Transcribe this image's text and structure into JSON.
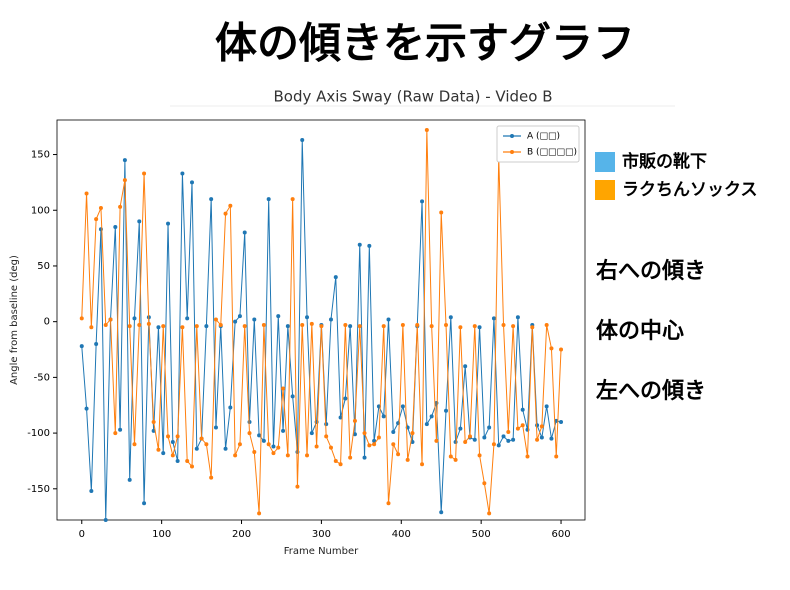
{
  "title": "体の傾きを示すグラフ",
  "chart_data": {
    "type": "line",
    "title": "Body Axis Sway (Raw Data) - Video B",
    "x_label": "Frame Number",
    "y_label": "Angle from baseline (deg)",
    "x": [
      0,
      6,
      12,
      18,
      24,
      30,
      36,
      42,
      48,
      54,
      60,
      66,
      72,
      78,
      84,
      90,
      96,
      102,
      108,
      114,
      120,
      126,
      132,
      138,
      144,
      150,
      156,
      162,
      168,
      174,
      180,
      186,
      192,
      198,
      204,
      210,
      216,
      222,
      228,
      234,
      240,
      246,
      252,
      258,
      264,
      270,
      276,
      282,
      288,
      294,
      300,
      306,
      312,
      318,
      324,
      330,
      336,
      342,
      348,
      354,
      360,
      366,
      372,
      378,
      384,
      390,
      396,
      402,
      408,
      414,
      420,
      426,
      432,
      438,
      444,
      450,
      456,
      462,
      468,
      474,
      480,
      486,
      492,
      498,
      504,
      510,
      516,
      522,
      528,
      534,
      540,
      546,
      552,
      558,
      564,
      570,
      576,
      582,
      588,
      594,
      600
    ],
    "series": [
      {
        "name": "A (□□)",
        "color": "#1f77b4",
        "values": [
          -22,
          -78,
          -152,
          -20,
          83,
          -178,
          2,
          85,
          -97,
          145,
          -142,
          3,
          90,
          -163,
          4,
          -98,
          -5,
          -118,
          88,
          -108,
          -125,
          133,
          3,
          125,
          -114,
          -105,
          -4,
          110,
          -95,
          -4,
          -114,
          -77,
          0,
          5,
          80,
          -90,
          2,
          -102,
          -107,
          110,
          -112,
          5,
          -98,
          -4,
          -67,
          -117,
          163,
          4,
          -100,
          -90,
          -3,
          -92,
          2,
          40,
          -86,
          -69,
          -4,
          -101,
          69,
          -122,
          68,
          -107,
          -76,
          -85,
          2,
          -99,
          -91,
          -76,
          -95,
          -108,
          -4,
          108,
          -92,
          -85,
          -73,
          -171,
          -80,
          4,
          -108,
          -96,
          -40,
          -104,
          -106,
          -5,
          -104,
          -95,
          3,
          -111,
          -103,
          -107,
          -106,
          4,
          -79,
          -97,
          -3,
          -93,
          -104,
          -76,
          -105,
          -89,
          -90
        ]
      },
      {
        "name": "B (□□□□)",
        "color": "#ff7f0e",
        "values": [
          3,
          115,
          -5,
          92,
          102,
          -3,
          2,
          -100,
          103,
          127,
          -4,
          -110,
          -3,
          133,
          -2,
          -90,
          -115,
          -4,
          -103,
          -120,
          -103,
          -5,
          -125,
          -130,
          -4,
          -105,
          -110,
          -140,
          2,
          -3,
          97,
          104,
          -120,
          -110,
          -4,
          -100,
          -117,
          -172,
          -3,
          -110,
          -118,
          -113,
          -60,
          -120,
          110,
          -148,
          -3,
          -120,
          -2,
          -112,
          -4,
          -103,
          -113,
          -125,
          -128,
          -3,
          -122,
          -89,
          -4,
          -100,
          -111,
          -110,
          -104,
          -4,
          -163,
          -110,
          -119,
          -3,
          -124,
          -100,
          -3,
          -128,
          172,
          -4,
          -107,
          98,
          -3,
          -121,
          -124,
          -5,
          -108,
          -103,
          -4,
          -120,
          -145,
          -172,
          -110,
          148,
          -3,
          -99,
          -4,
          -96,
          -93,
          -121,
          -5,
          -106,
          -94,
          -3,
          -24,
          -121,
          -25
        ]
      }
    ],
    "xlim": [
      -31,
      630
    ],
    "ylim": [
      -178,
      181
    ],
    "xticks": [
      0,
      100,
      200,
      300,
      400,
      500,
      600
    ],
    "yticks": [
      -150,
      -100,
      -50,
      0,
      50,
      100,
      150
    ],
    "legend": "upper right"
  },
  "side_legend": [
    {
      "label": "市販の靴下",
      "color": "#56b4e9"
    },
    {
      "label": "ラクちんソックス",
      "color": "#ffa500"
    }
  ],
  "annotations": [
    "右への傾き",
    "体の中心",
    "左への傾き"
  ]
}
